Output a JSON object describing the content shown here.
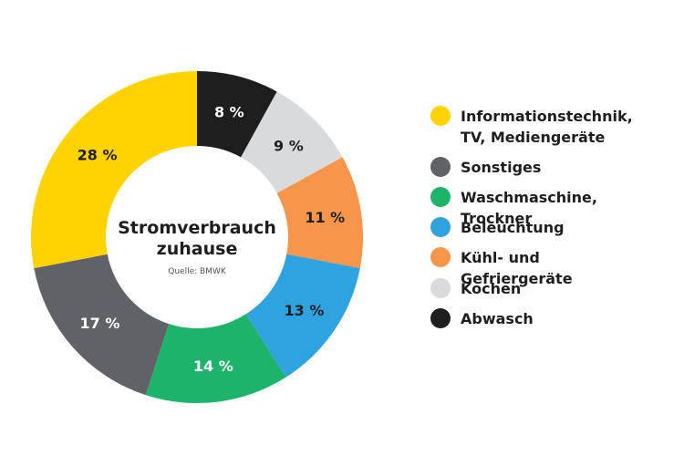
{
  "chart_data": {
    "type": "pie",
    "variant": "donut",
    "title": "Stromverbrauch zuhause",
    "subtitle": "Quelle: BMWK",
    "legend_position": "right",
    "slices": [
      {
        "name": "Abwasch",
        "value": 8,
        "label": "8 %",
        "color": "#1e1e1e",
        "label_color": "#ffffff"
      },
      {
        "name": "Kochen",
        "value": 9,
        "label": "9 %",
        "color": "#d9dadc",
        "label_color": "#1e1e1e"
      },
      {
        "name": "Kühl- und Gefriergeräte",
        "value": 11,
        "label": "11 %",
        "color": "#f7964a",
        "label_color": "#1e1e1e"
      },
      {
        "name": "Beleuchtung",
        "value": 13,
        "label": "13 %",
        "color": "#2ea3e0",
        "label_color": "#1e1e1e"
      },
      {
        "name": "Waschmaschine, Trockner",
        "value": 14,
        "label": "14 %",
        "color": "#1db36b",
        "label_color": "#ffffff"
      },
      {
        "name": "Sonstiges",
        "value": 17,
        "label": "17 %",
        "color": "#5f6368",
        "label_color": "#ffffff"
      },
      {
        "name": "Informationstechnik, TV, Mediengeräte",
        "value": 28,
        "label": "28 %",
        "color": "#ffd200",
        "label_color": "#1e1e1e"
      }
    ],
    "legend": [
      {
        "label": "Informationstechnik,\nTV, Mediengeräte",
        "color": "#ffd200"
      },
      {
        "label": "Sonstiges",
        "color": "#5f6368"
      },
      {
        "label": "Waschmaschine, Trockner",
        "color": "#1db36b"
      },
      {
        "label": "Beleuchtung",
        "color": "#2ea3e0"
      },
      {
        "label": "Kühl- und Gefriergeräte",
        "color": "#f7964a"
      },
      {
        "label": "Kochen",
        "color": "#d9dadc"
      },
      {
        "label": "Abwasch",
        "color": "#1e1e1e"
      }
    ]
  }
}
